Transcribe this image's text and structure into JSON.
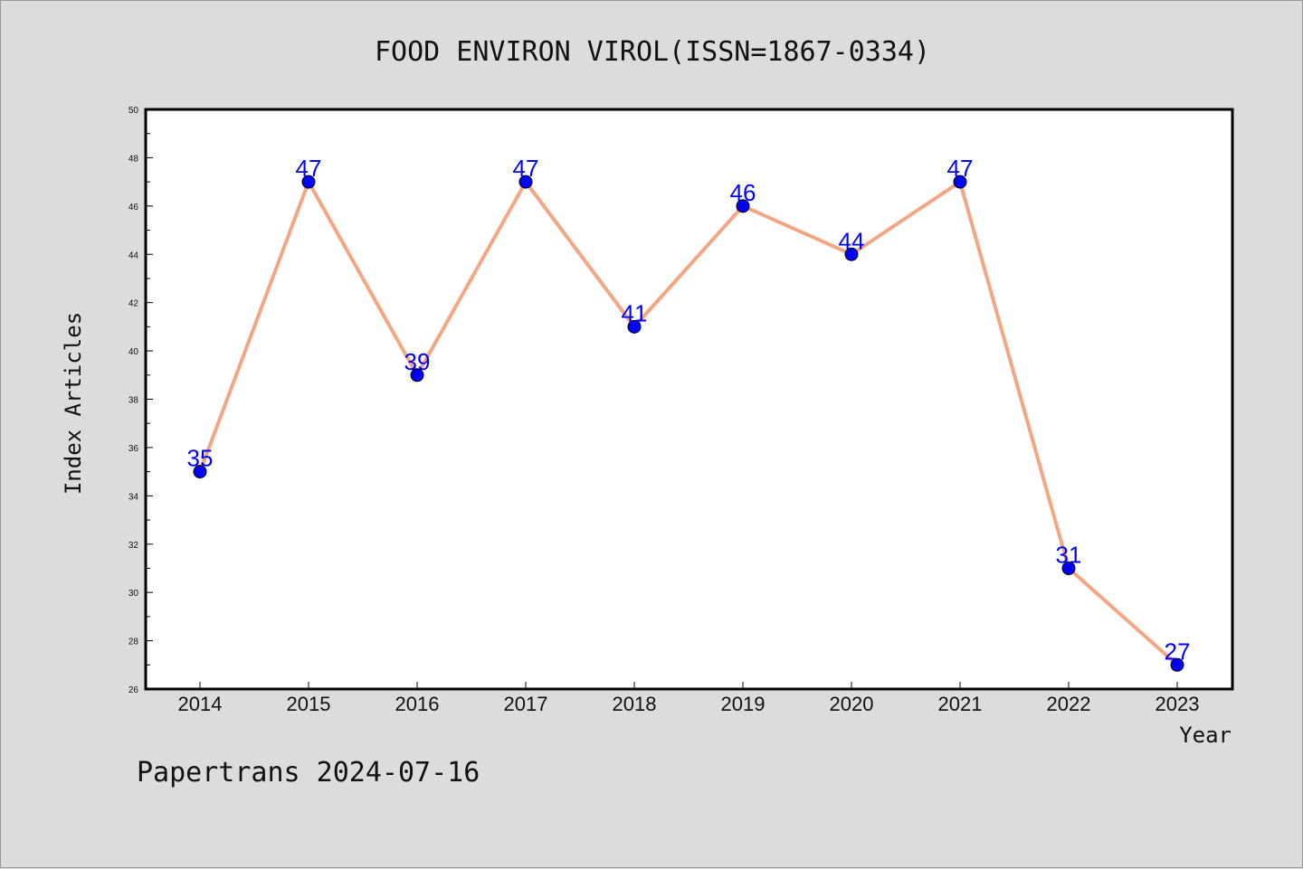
{
  "chart_data": {
    "type": "line",
    "title": "FOOD ENVIRON VIROL(ISSN=1867-0334)",
    "xlabel": "Year",
    "ylabel": "Index Articles",
    "categories": [
      "2014",
      "2015",
      "2016",
      "2017",
      "2018",
      "2019",
      "2020",
      "2021",
      "2022",
      "2023"
    ],
    "series": [
      {
        "values": [
          35,
          47,
          39,
          47,
          41,
          46,
          44,
          47,
          31,
          27
        ]
      }
    ],
    "ylim": [
      26,
      50
    ],
    "yticks": [
      26,
      28,
      30,
      32,
      34,
      36,
      38,
      40,
      42,
      44,
      46,
      48,
      50
    ],
    "line_color": "#f4a582",
    "marker_color": "#0000ff",
    "label_color": "#0000ff",
    "grid": false
  },
  "footer": "Papertrans 2024-07-16"
}
